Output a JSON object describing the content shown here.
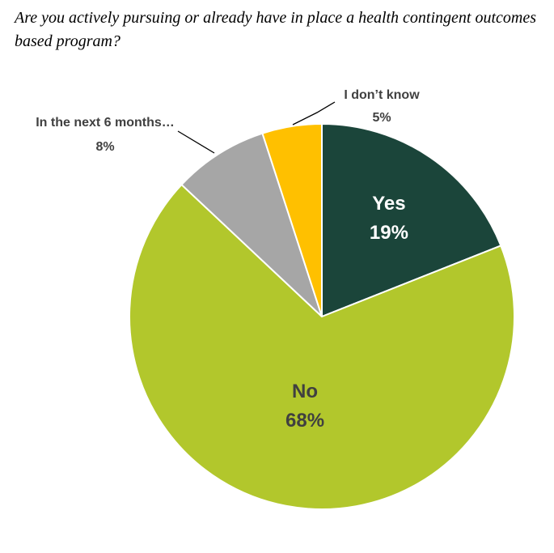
{
  "chart_data": {
    "type": "pie",
    "title": "Are you actively pursuing or already have in place a health contingent outcomes based program?",
    "slices": [
      {
        "label": "Yes",
        "value": 19,
        "value_label": "19%",
        "color": "#1b453a",
        "label_color": "#ffffff"
      },
      {
        "label": "No",
        "value": 68,
        "value_label": "68%",
        "color": "#b2c72c",
        "label_color": "#404040"
      },
      {
        "label": "In the next 6 months…",
        "value": 8,
        "value_label": "8%",
        "color": "#a6a6a6",
        "label_color": "#404040"
      },
      {
        "label": "I don’t know",
        "value": 5,
        "value_label": "5%",
        "color": "#ffc000",
        "label_color": "#404040"
      }
    ],
    "start": "12 o'clock",
    "direction": "clockwise",
    "legend": "none"
  }
}
